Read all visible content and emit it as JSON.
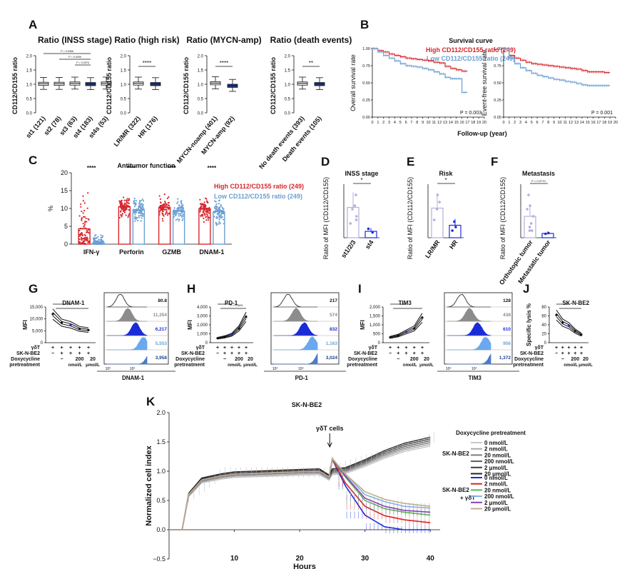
{
  "colors": {
    "high": "#d7262c",
    "low": "#6a9fd2",
    "navy": "#1f3f8f",
    "ink": "#111111",
    "grey": "#8a8a8a",
    "lilac": "#b5aedc",
    "blue": "#1a2bd8"
  },
  "panel_letters": {
    "A": "A",
    "B": "B",
    "C": "C",
    "D": "D",
    "E": "E",
    "F": "F",
    "G": "G",
    "H": "H",
    "I": "I",
    "J": "J",
    "K": "K"
  },
  "chart_data": [
    {
      "id": "A1",
      "type": "boxplot",
      "title": "Ratio (INSS stage)",
      "ylabel": "CD112/CD155 ratio",
      "yticks": [
        "0.0",
        "0.5",
        "1.0",
        "1.5",
        "2.0"
      ],
      "categories": [
        "st1 (121)",
        "st2 (78)",
        "st3 (63)",
        "st4 (183)",
        "st4s (53)"
      ],
      "medians": [
        1.02,
        1.02,
        1.03,
        1.01,
        1.03
      ],
      "pvalues": [
        "P = 0.0056",
        "P = 0.0099",
        "P = 0.0076"
      ]
    },
    {
      "id": "A2",
      "type": "boxplot",
      "title": "Ratio (high risk)",
      "ylabel": "CD112/CD155 ratio",
      "yticks": [
        "0.0",
        "0.5",
        "1.0",
        "1.5",
        "2.0"
      ],
      "categories": [
        "LR/MR (322)",
        "HR (176)"
      ],
      "medians": [
        1.03,
        1.01
      ],
      "sig": "****"
    },
    {
      "id": "A3",
      "type": "boxplot",
      "title": "Ratio (MYCN-amp)",
      "ylabel": "CD112/CD155 ratio",
      "yticks": [
        "0.0",
        "0.5",
        "1.0",
        "1.5",
        "2.0"
      ],
      "categories": [
        "MYCN-noamp (401)",
        "MYCN-amp (92)"
      ],
      "medians": [
        1.04,
        0.95
      ],
      "sig": "****"
    },
    {
      "id": "A4",
      "type": "boxplot",
      "title": "Ratio (death events)",
      "ylabel": "CD112/CD155 ratio",
      "yticks": [
        "0.0",
        "0.5",
        "1.0",
        "1.5",
        "2.0"
      ],
      "categories": [
        "No death events (393)",
        "Death events (105)"
      ],
      "medians": [
        1.03,
        1.01
      ],
      "sig": "**"
    },
    {
      "id": "B",
      "type": "line",
      "title": "Survival curve",
      "legend": [
        "High CD112/CD155 ratio (249)",
        "Low CD112/CD155 ratio (249)"
      ],
      "xlabel": "Follow-up (year)",
      "xticks": [
        "0",
        "1",
        "2",
        "3",
        "4",
        "5",
        "6",
        "7",
        "8",
        "9",
        "10",
        "11",
        "12",
        "13",
        "14",
        "15",
        "16",
        "17",
        "18",
        "19",
        "20"
      ],
      "yticks": [
        "0.00",
        "0.25",
        "0.50",
        "0.75",
        "1.00"
      ],
      "plots": [
        {
          "ylabel": "Overall survival rate",
          "p": "P = 0.003",
          "high": {
            "x": [
              0,
              1,
              2,
              3,
              4,
              5,
              6,
              7,
              8,
              9,
              10,
              11,
              12,
              13,
              14,
              15,
              16,
              17
            ],
            "y": [
              1.0,
              0.97,
              0.95,
              0.92,
              0.9,
              0.88,
              0.86,
              0.85,
              0.84,
              0.83,
              0.82,
              0.8,
              0.79,
              0.74,
              0.71,
              0.69,
              0.67,
              0.67
            ]
          },
          "low": {
            "x": [
              0,
              1,
              2,
              3,
              4,
              5,
              6,
              7,
              8,
              9,
              10,
              11,
              12,
              13,
              14,
              15,
              16,
              17
            ],
            "y": [
              1.0,
              0.95,
              0.9,
              0.86,
              0.82,
              0.78,
              0.75,
              0.74,
              0.73,
              0.71,
              0.69,
              0.66,
              0.63,
              0.58,
              0.56,
              0.56,
              0.36,
              0.36
            ]
          }
        },
        {
          "ylabel": "Event-free survival rate",
          "p": "P = 0.001",
          "high": {
            "x": [
              0,
              1,
              2,
              3,
              4,
              5,
              6,
              7,
              8,
              9,
              10,
              11,
              12,
              13,
              14,
              15,
              16,
              17,
              18,
              19
            ],
            "y": [
              1.0,
              0.9,
              0.86,
              0.83,
              0.8,
              0.78,
              0.77,
              0.76,
              0.75,
              0.74,
              0.73,
              0.72,
              0.71,
              0.7,
              0.68,
              0.66,
              0.66,
              0.66,
              0.65,
              0.65
            ]
          },
          "low": {
            "x": [
              0,
              1,
              2,
              3,
              4,
              5,
              6,
              7,
              8,
              9,
              10,
              11,
              12,
              13,
              14,
              15,
              16,
              17,
              18,
              19
            ],
            "y": [
              1.0,
              0.86,
              0.78,
              0.72,
              0.68,
              0.64,
              0.61,
              0.59,
              0.57,
              0.55,
              0.54,
              0.52,
              0.51,
              0.49,
              0.47,
              0.46,
              0.46,
              0.46,
              0.46,
              0.46
            ]
          }
        }
      ]
    },
    {
      "id": "C",
      "type": "bar",
      "title": "Antitumor function",
      "ylabel": "%",
      "yticks": [
        "0",
        "5",
        "10",
        "15",
        "20"
      ],
      "categories": [
        "IFN-γ",
        "Perforin",
        "GZMB",
        "DNAM-1"
      ],
      "series": [
        {
          "name": "High CD112/CD155 ratio (249)",
          "values": [
            4.3,
            10.5,
            10.3,
            9.9
          ]
        },
        {
          "name": "Low CD112/CD155 ratio (249)",
          "values": [
            0.4,
            9.6,
            9.3,
            9.1
          ]
        }
      ],
      "sig": "****"
    },
    {
      "id": "D",
      "type": "bar",
      "title": "INSS stage",
      "ylabel": "Ratio of MFI (CD112/CD155)",
      "categories": [
        "st1/2/3",
        "st4"
      ],
      "values": [
        8.5,
        1.8
      ],
      "sig": "*"
    },
    {
      "id": "E",
      "type": "bar",
      "title": "Risk",
      "ylabel": "Ratio of MFI (CD112/CD155)",
      "categories": [
        "LR/MR",
        "HR"
      ],
      "values": [
        8.3,
        3.5
      ],
      "sig": "*"
    },
    {
      "id": "F",
      "type": "bar",
      "title": "Metastasis",
      "ylabel": "Ratio of MFI (CD112/CD155)",
      "categories": [
        "Orthotopic tumor",
        "Metastatic tumor"
      ],
      "values": [
        6.0,
        1.2
      ],
      "pvalue": "P = 0.0770"
    },
    {
      "id": "G",
      "type": "line",
      "title": "DNAM-1",
      "ylabel": "MFI",
      "yticks": [
        "0",
        "5,000",
        "10,000",
        "15,000"
      ],
      "values": [
        12000,
        8400,
        7500,
        5800,
        5300
      ],
      "histogram_xlabel": "DNAM-1",
      "histogram_values": [
        "80.8",
        "11,354",
        "6,217",
        "5,553",
        "3,958"
      ]
    },
    {
      "id": "H",
      "type": "line",
      "title": "PD-1",
      "ylabel": "MFI",
      "yticks": [
        "0",
        "1,000",
        "2,000",
        "3,000",
        "4,000"
      ],
      "values": [
        500,
        650,
        900,
        1600,
        2900
      ],
      "pvalue": "P = 0.0609",
      "histogram_xlabel": "PD-1",
      "histogram_values": [
        "217",
        "574",
        "832",
        "1,163",
        "3,024"
      ]
    },
    {
      "id": "I",
      "type": "line",
      "title": "TIM3",
      "ylabel": "MFI",
      "yticks": [
        "0",
        "500",
        "1,000",
        "1,500",
        "2,000"
      ],
      "values": [
        300,
        400,
        600,
        800,
        1400
      ],
      "histogram_xlabel": "TIM3",
      "histogram_values": [
        "128",
        "438",
        "610",
        "956",
        "1,372"
      ]
    },
    {
      "id": "J",
      "type": "line",
      "title": "SK-N-BE2",
      "ylabel": "Specific lysis %",
      "yticks": [
        "0",
        "20",
        "40",
        "60",
        "80"
      ],
      "values": [
        62,
        45,
        38,
        26,
        18
      ]
    },
    {
      "id": "K",
      "type": "line",
      "title": "SK-N-BE2",
      "xlabel": "Hours",
      "ylabel": "Normalized cell index",
      "xticks": [
        "10",
        "20",
        "30",
        "40"
      ],
      "yticks": [
        "−0.5",
        "0.0",
        "0.5",
        "1.0",
        "1.5",
        "2.0"
      ],
      "annotation": "γδT cells",
      "legend_title": "Doxycycline pretreatment",
      "legend_group1": "SK-N-BE2",
      "legend_group2": "SK-N-BE2 + γδT",
      "legend": [
        "0 nmol/L",
        "2 nmol/L",
        "20 nmol/L",
        "200 nmol/L",
        "2 μmol/L",
        "20 μmol/L"
      ],
      "x": [
        0,
        2,
        3,
        5,
        8,
        10,
        15,
        20,
        23,
        24.5,
        25,
        27,
        30,
        33,
        36,
        40
      ],
      "series_control": [
        0,
        0,
        0.6,
        0.85,
        0.92,
        0.95,
        0.97,
        0.99,
        1.0,
        0.9,
        1.0,
        1.02,
        1.15,
        1.3,
        1.42,
        1.52
      ],
      "series_treated": [
        {
          "name": "0 nmol/L",
          "values": [
            0,
            0,
            0.6,
            0.85,
            0.92,
            0.95,
            0.97,
            0.99,
            1.0,
            0.9,
            1.2,
            0.75,
            0.25,
            0.05,
            0.0,
            0.0
          ]
        },
        {
          "name": "2 nmol/L",
          "values": [
            0,
            0,
            0.6,
            0.85,
            0.92,
            0.95,
            0.97,
            0.99,
            1.0,
            0.9,
            1.2,
            0.8,
            0.4,
            0.24,
            0.17,
            0.12
          ]
        },
        {
          "name": "20 nmol/L",
          "values": [
            0,
            0,
            0.6,
            0.85,
            0.92,
            0.95,
            0.97,
            0.99,
            1.0,
            0.9,
            1.21,
            0.9,
            0.5,
            0.36,
            0.3,
            0.25
          ]
        },
        {
          "name": "200 nmol/L",
          "values": [
            0,
            0,
            0.6,
            0.85,
            0.92,
            0.95,
            0.97,
            0.99,
            1.0,
            0.9,
            1.21,
            0.95,
            0.6,
            0.48,
            0.4,
            0.37
          ]
        },
        {
          "name": "2 μmol/L",
          "values": [
            0,
            0,
            0.6,
            0.85,
            0.92,
            0.95,
            0.97,
            0.99,
            1.0,
            0.9,
            1.22,
            0.92,
            0.54,
            0.4,
            0.33,
            0.3
          ]
        },
        {
          "name": "20 μmol/L",
          "values": [
            0,
            0,
            0.6,
            0.85,
            0.92,
            0.95,
            0.97,
            0.99,
            1.0,
            0.9,
            1.22,
            0.95,
            0.65,
            0.52,
            0.45,
            0.4
          ]
        }
      ]
    }
  ],
  "cond_labels": {
    "gdt": "γδT",
    "skn": "SK-N-BE2",
    "dox": "Doxycycline",
    "pre": "pretreatment",
    "plus": "+",
    "minus": "−",
    "c200": "200",
    "c20": "20",
    "unit_nm": "nmol/L",
    "unit_um": "μmol/L",
    "flow_axis": "10⁰"
  }
}
